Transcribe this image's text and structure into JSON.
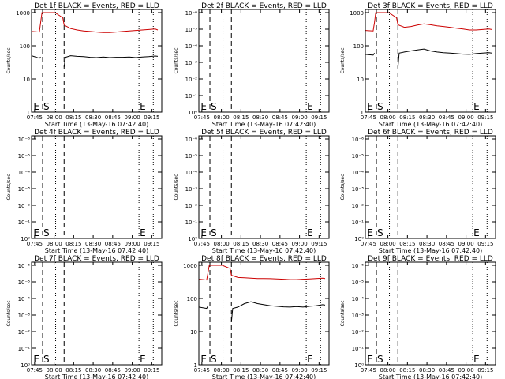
{
  "chart_data": {
    "type": "line",
    "xlabel": "Start Time (13-May-16 07:42:40)",
    "ylabel": "Counts/sec",
    "x_ticks": [
      "07:45",
      "08:00",
      "08:15",
      "08:30",
      "08:45",
      "09:00",
      "09:15"
    ],
    "x_tick_minutes": [
      2.33,
      17.33,
      32.33,
      47.33,
      62.33,
      77.33,
      92.33
    ],
    "x_range_minutes": [
      0,
      100
    ],
    "colors": {
      "events": "#000000",
      "lld": "#cc0000"
    },
    "panels": [
      {
        "id": "1f",
        "title": "Det 1f BLACK = Events, RED = LLD",
        "scale": "counts",
        "y_ticks": [
          "1",
          "10",
          "100",
          "1000"
        ],
        "y_tick_values": [
          1,
          10,
          100,
          1000
        ],
        "markers": [
          {
            "label": "E",
            "x": 0.8
          },
          {
            "label": "S",
            "x": 8.5
          },
          {
            "label": "E",
            "x": 82.5
          }
        ],
        "dashed_lines": [
          8.5,
          25.0
        ],
        "dotted_lines": [
          18.5,
          82.5,
          93.5
        ],
        "series": [
          {
            "name": "Events",
            "color": "#000000",
            "x": [
              0,
              6,
              7,
              24.5,
              25,
              26,
              30,
              35,
              40,
              45,
              50,
              55,
              60,
              65,
              70,
              75,
              80,
              85,
              90,
              95,
              97
            ],
            "y": [
              50,
              42,
              46,
              null,
              23,
              45,
              50,
              48,
              47,
              45,
              44,
              46,
              44,
              45,
              45,
              46,
              44,
              46,
              47,
              49,
              48
            ]
          },
          {
            "name": "LLD",
            "color": "#cc0000",
            "x": [
              0,
              6,
              7,
              8,
              16,
              18,
              24,
              25,
              30,
              35,
              40,
              45,
              50,
              55,
              60,
              65,
              70,
              75,
              80,
              85,
              90,
              95,
              97
            ],
            "y": [
              270,
              260,
              500,
              1000,
              1000,
              1000,
              700,
              420,
              330,
              300,
              280,
              270,
              260,
              250,
              250,
              260,
              270,
              280,
              290,
              300,
              310,
              320,
              300
            ]
          }
        ]
      },
      {
        "id": "2f",
        "title": "Det 2f BLACK = Events, RED = LLD",
        "scale": "rate",
        "y_ticks": [
          "10⁰",
          "10⁻¹",
          "10⁻²",
          "10⁻³",
          "10⁻⁴",
          "10⁻⁵",
          "10⁻⁶"
        ],
        "y_tick_values": [
          1,
          0.1,
          0.01,
          0.001,
          0.0001,
          1e-05,
          1e-06
        ],
        "markers": [
          {
            "label": "E",
            "x": 0.8
          },
          {
            "label": "S",
            "x": 8.5
          },
          {
            "label": "E",
            "x": 82.5
          }
        ],
        "dashed_lines": [
          8.5,
          25.0
        ],
        "dotted_lines": [
          18.5,
          82.5,
          93.5
        ],
        "series": []
      },
      {
        "id": "3f",
        "title": "Det 3f BLACK = Events, RED = LLD",
        "scale": "counts",
        "y_ticks": [
          "1",
          "10",
          "100",
          "1000"
        ],
        "y_tick_values": [
          1,
          10,
          100,
          1000
        ],
        "markers": [
          {
            "label": "E",
            "x": 0.8
          },
          {
            "label": "S",
            "x": 8.5
          },
          {
            "label": "E",
            "x": 82.5
          }
        ],
        "dashed_lines": [
          8.5,
          25.0
        ],
        "dotted_lines": [
          18.5,
          82.5,
          93.5
        ],
        "series": [
          {
            "name": "Events",
            "color": "#000000",
            "x": [
              0,
              6,
              7,
              24.5,
              25,
              26,
              30,
              35,
              40,
              45,
              50,
              55,
              60,
              65,
              70,
              75,
              80,
              85,
              90,
              95,
              97
            ],
            "y": [
              55,
              52,
              60,
              null,
              22,
              60,
              65,
              70,
              75,
              80,
              70,
              65,
              62,
              60,
              58,
              56,
              55,
              58,
              60,
              62,
              60
            ]
          },
          {
            "name": "LLD",
            "color": "#cc0000",
            "x": [
              0,
              6,
              7,
              8,
              16,
              18,
              24,
              25,
              30,
              35,
              40,
              45,
              50,
              55,
              60,
              65,
              70,
              75,
              80,
              85,
              90,
              95,
              97
            ],
            "y": [
              290,
              280,
              500,
              1000,
              1000,
              1000,
              700,
              430,
              360,
              380,
              420,
              460,
              430,
              400,
              380,
              360,
              340,
              320,
              300,
              300,
              310,
              320,
              310
            ]
          }
        ]
      },
      {
        "id": "4f",
        "title": "Det 4f BLACK = Events, RED = LLD",
        "scale": "rate",
        "y_ticks": [
          "10⁰",
          "10⁻¹",
          "10⁻²",
          "10⁻³",
          "10⁻⁴",
          "10⁻⁵",
          "10⁻⁶"
        ],
        "y_tick_values": [
          1,
          0.1,
          0.01,
          0.001,
          0.0001,
          1e-05,
          1e-06
        ],
        "markers": [
          {
            "label": "E",
            "x": 0.8
          },
          {
            "label": "S",
            "x": 8.5
          },
          {
            "label": "E",
            "x": 82.5
          }
        ],
        "dashed_lines": [
          8.5,
          25.0
        ],
        "dotted_lines": [
          18.5,
          82.5,
          93.5
        ],
        "series": []
      },
      {
        "id": "5f",
        "title": "Det 5f BLACK = Events, RED = LLD",
        "scale": "rate",
        "y_ticks": [
          "10⁰",
          "10⁻¹",
          "10⁻²",
          "10⁻³",
          "10⁻⁴",
          "10⁻⁵",
          "10⁻⁶"
        ],
        "y_tick_values": [
          1,
          0.1,
          0.01,
          0.001,
          0.0001,
          1e-05,
          1e-06
        ],
        "markers": [
          {
            "label": "E",
            "x": 0.8
          },
          {
            "label": "S",
            "x": 8.5
          },
          {
            "label": "E",
            "x": 82.5
          }
        ],
        "dashed_lines": [
          8.5,
          25.0
        ],
        "dotted_lines": [
          18.5,
          82.5,
          93.5
        ],
        "series": []
      },
      {
        "id": "6f",
        "title": "Det 6f BLACK = Events, RED = LLD",
        "scale": "rate",
        "y_ticks": [
          "10⁰",
          "10⁻¹",
          "10⁻²",
          "10⁻³",
          "10⁻⁴",
          "10⁻⁵",
          "10⁻⁶"
        ],
        "y_tick_values": [
          1,
          0.1,
          0.01,
          0.001,
          0.0001,
          1e-05,
          1e-06
        ],
        "markers": [
          {
            "label": "E",
            "x": 0.8
          },
          {
            "label": "S",
            "x": 8.5
          },
          {
            "label": "E",
            "x": 82.5
          }
        ],
        "dashed_lines": [
          8.5,
          25.0
        ],
        "dotted_lines": [
          18.5,
          82.5,
          93.5
        ],
        "series": []
      },
      {
        "id": "7f",
        "title": "Det 7f BLACK = Events, RED = LLD",
        "scale": "rate",
        "y_ticks": [
          "10⁰",
          "10⁻¹",
          "10⁻²",
          "10⁻³",
          "10⁻⁴",
          "10⁻⁵",
          "10⁻⁶"
        ],
        "y_tick_values": [
          1,
          0.1,
          0.01,
          0.001,
          0.0001,
          1e-05,
          1e-06
        ],
        "markers": [
          {
            "label": "E",
            "x": 0.8
          },
          {
            "label": "S",
            "x": 8.5
          },
          {
            "label": "E",
            "x": 82.5
          }
        ],
        "dashed_lines": [
          8.5,
          25.0
        ],
        "dotted_lines": [
          18.5,
          82.5,
          93.5
        ],
        "series": []
      },
      {
        "id": "8f",
        "title": "Det 8f BLACK = Events, RED = LLD",
        "scale": "counts",
        "y_ticks": [
          "1",
          "10",
          "100",
          "1000"
        ],
        "y_tick_values": [
          1,
          10,
          100,
          1000
        ],
        "markers": [
          {
            "label": "E",
            "x": 0.8
          },
          {
            "label": "S",
            "x": 8.5
          },
          {
            "label": "E",
            "x": 82.5
          }
        ],
        "dashed_lines": [
          8.5,
          25.0
        ],
        "dotted_lines": [
          18.5,
          82.5,
          93.5
        ],
        "series": [
          {
            "name": "Events",
            "color": "#000000",
            "x": [
              0,
              6,
              7,
              24.5,
              25,
              26,
              30,
              35,
              40,
              45,
              50,
              55,
              60,
              65,
              70,
              75,
              80,
              85,
              90,
              95,
              97
            ],
            "y": [
              55,
              50,
              60,
              null,
              20,
              50,
              55,
              70,
              80,
              70,
              65,
              60,
              58,
              56,
              55,
              57,
              55,
              58,
              60,
              65,
              63
            ]
          },
          {
            "name": "LLD",
            "color": "#cc0000",
            "x": [
              0,
              6,
              7,
              8,
              16,
              18,
              24,
              25,
              30,
              35,
              40,
              45,
              50,
              55,
              60,
              65,
              70,
              75,
              80,
              85,
              90,
              95,
              97
            ],
            "y": [
              380,
              360,
              600,
              1000,
              1000,
              1000,
              800,
              500,
              430,
              420,
              410,
              400,
              400,
              395,
              390,
              380,
              370,
              370,
              380,
              390,
              400,
              410,
              400
            ]
          }
        ]
      },
      {
        "id": "9f",
        "title": "Det 9f BLACK = Events, RED = LLD",
        "scale": "rate",
        "y_ticks": [
          "10⁰",
          "10⁻¹",
          "10⁻²",
          "10⁻³",
          "10⁻⁴",
          "10⁻⁵",
          "10⁻⁶"
        ],
        "y_tick_values": [
          1,
          0.1,
          0.01,
          0.001,
          0.0001,
          1e-05,
          1e-06
        ],
        "markers": [
          {
            "label": "E",
            "x": 0.8
          },
          {
            "label": "S",
            "x": 8.5
          },
          {
            "label": "E",
            "x": 82.5
          }
        ],
        "dashed_lines": [
          8.5,
          25.0
        ],
        "dotted_lines": [
          18.5,
          82.5,
          93.5
        ],
        "series": []
      }
    ]
  }
}
